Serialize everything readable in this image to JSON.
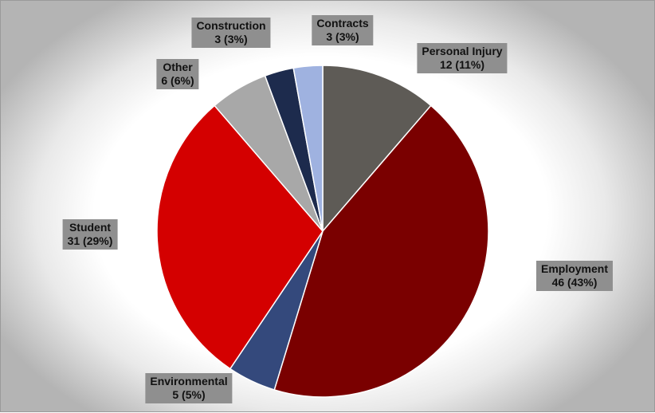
{
  "chart_data": {
    "type": "pie",
    "slices": [
      {
        "name": "Personal Injury",
        "value": 12,
        "percent": "11%",
        "color": "#5e5b56"
      },
      {
        "name": "Employment",
        "value": 46,
        "percent": "43%",
        "color": "#7a0000"
      },
      {
        "name": "Environmental",
        "value": 5,
        "percent": "5%",
        "color": "#34497c"
      },
      {
        "name": "Student",
        "value": 31,
        "percent": "29%",
        "color": "#d40000"
      },
      {
        "name": "Other",
        "value": 6,
        "percent": "6%",
        "color": "#a8a8a8"
      },
      {
        "name": "Construction",
        "value": 3,
        "percent": "3%",
        "color": "#1d2b4d"
      },
      {
        "name": "Contracts",
        "value": 3,
        "percent": "3%",
        "color": "#9fb2e0"
      }
    ],
    "start_angle_deg": 0,
    "direction": "clockwise",
    "legend": "none",
    "data_labels": "outside, category name and value with percent"
  }
}
